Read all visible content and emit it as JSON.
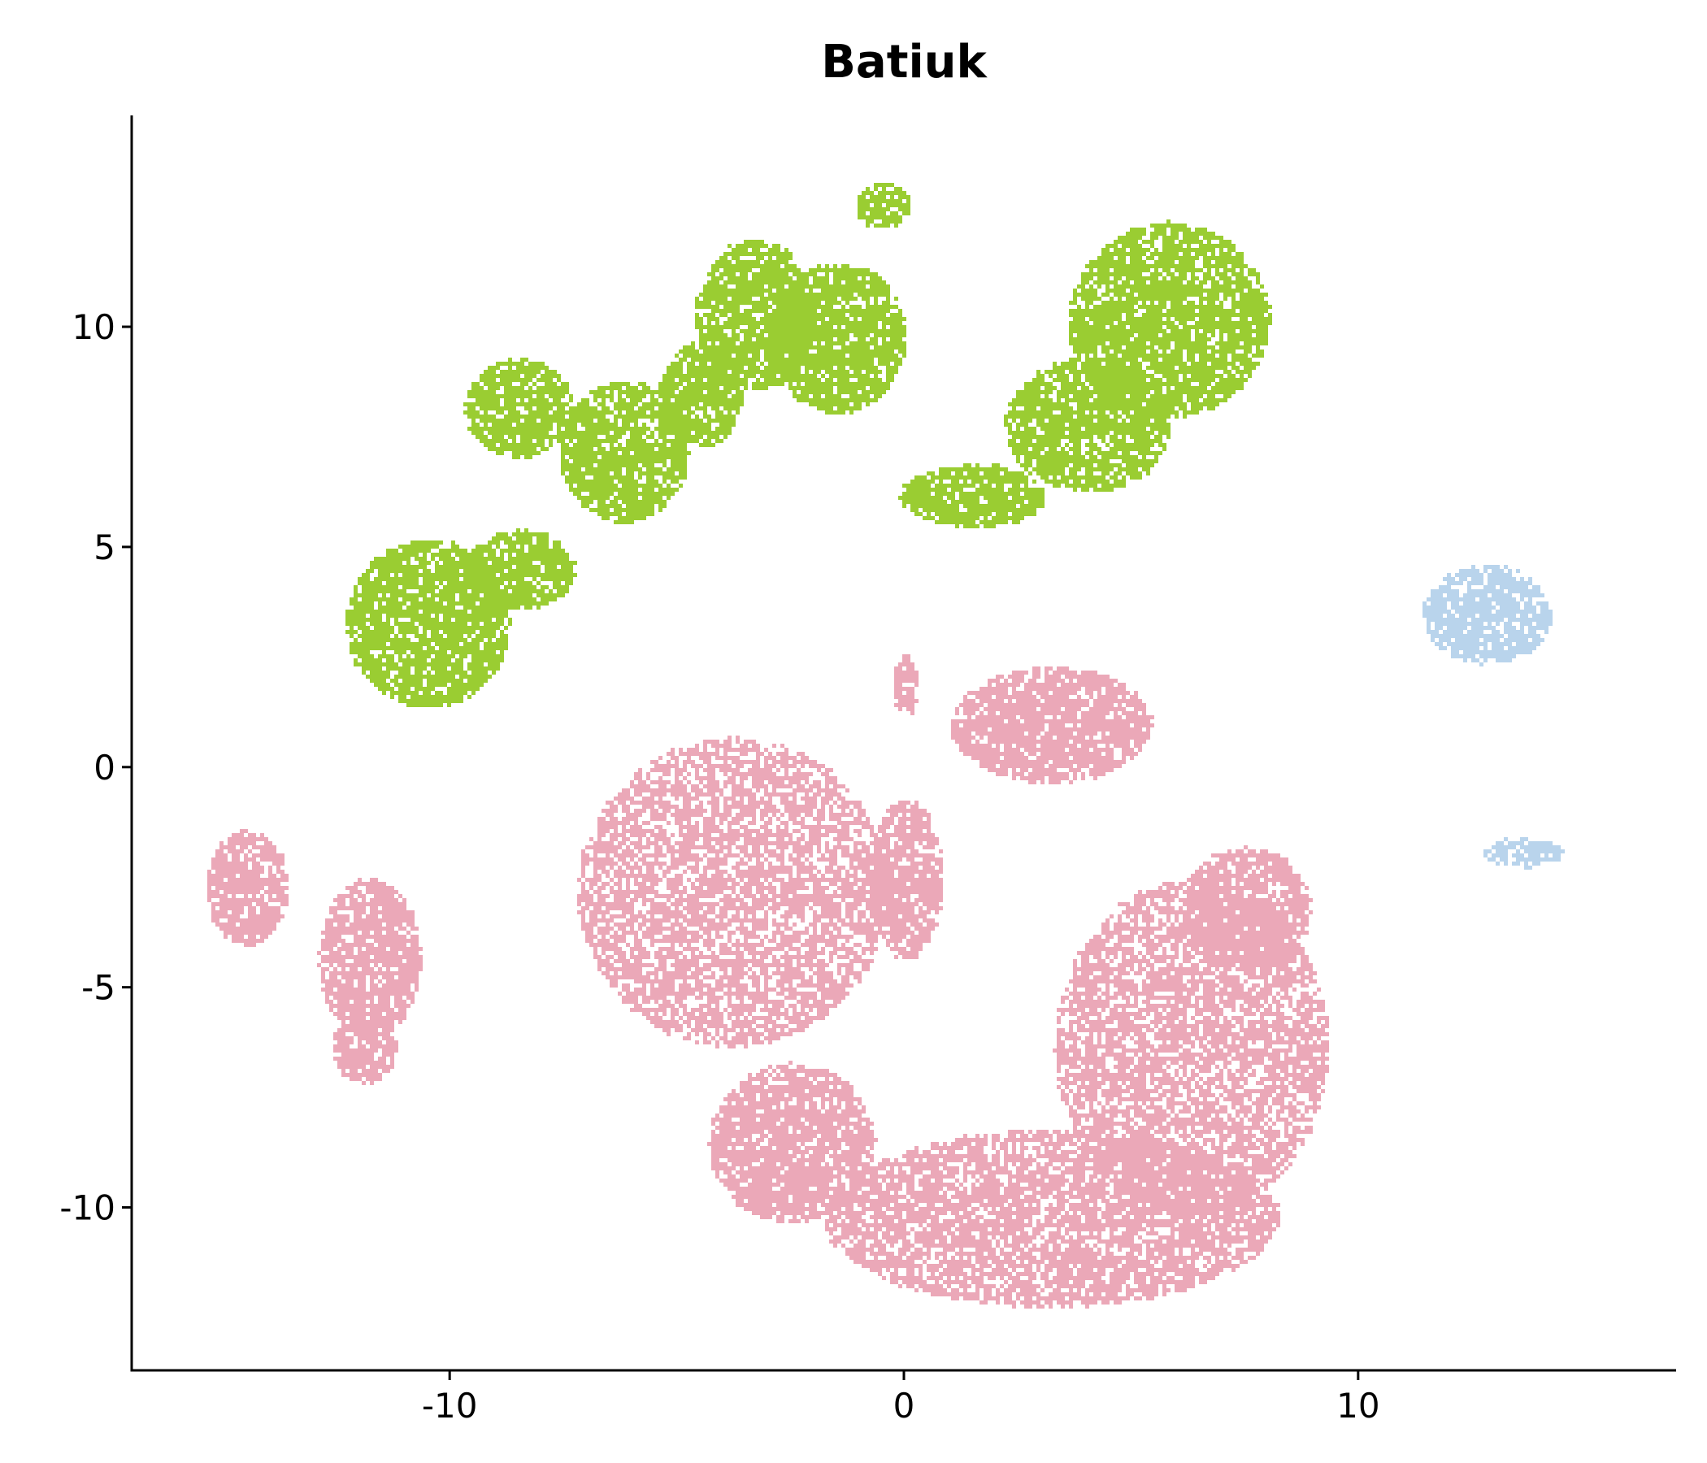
{
  "chart_data": {
    "type": "scatter",
    "title": "Batiuk",
    "xlabel": "",
    "ylabel": "",
    "xlim": [
      -17,
      17
    ],
    "ylim": [
      -13.7,
      14.8
    ],
    "x_ticks": [
      -10,
      0,
      10
    ],
    "x_tick_labels": [
      "-10",
      "0",
      "10"
    ],
    "y_ticks": [
      -10,
      -5,
      0,
      5,
      10
    ],
    "y_tick_labels": [
      "-10",
      "-5",
      "0",
      "5",
      "10"
    ],
    "grid": false,
    "legend": "none",
    "series": [
      {
        "color": "#9acd32",
        "clusters": [
          {
            "cx": -10.5,
            "cy": 3.3,
            "rx": 1.8,
            "ry": 1.9
          },
          {
            "cx": -8.5,
            "cy": 4.5,
            "rx": 1.2,
            "ry": 0.9
          },
          {
            "cx": -8.5,
            "cy": 8.2,
            "rx": 1.2,
            "ry": 1.1
          },
          {
            "cx": -6.2,
            "cy": 7.2,
            "rx": 1.4,
            "ry": 1.6
          },
          {
            "cx": -4.5,
            "cy": 8.5,
            "rx": 0.9,
            "ry": 1.2
          },
          {
            "cx": -3.3,
            "cy": 10.3,
            "rx": 1.3,
            "ry": 1.7
          },
          {
            "cx": -1.5,
            "cy": 9.8,
            "rx": 1.5,
            "ry": 1.7
          },
          {
            "cx": -0.5,
            "cy": 12.8,
            "rx": 0.6,
            "ry": 0.5
          },
          {
            "cx": 1.5,
            "cy": 6.2,
            "rx": 1.6,
            "ry": 0.7
          },
          {
            "cx": 4.0,
            "cy": 7.8,
            "rx": 1.8,
            "ry": 1.5
          },
          {
            "cx": 5.8,
            "cy": 10.2,
            "rx": 2.2,
            "ry": 2.2
          }
        ]
      },
      {
        "color": "#eba8b8",
        "clusters": [
          {
            "cx": -14.5,
            "cy": -2.7,
            "rx": 0.9,
            "ry": 1.3
          },
          {
            "cx": -11.8,
            "cy": -4.3,
            "rx": 1.1,
            "ry": 1.8
          },
          {
            "cx": -11.9,
            "cy": -6.3,
            "rx": 0.7,
            "ry": 0.8
          },
          {
            "cx": 0.0,
            "cy": 1.9,
            "rx": 0.25,
            "ry": 0.7
          },
          {
            "cx": 3.2,
            "cy": 1.0,
            "rx": 2.2,
            "ry": 1.3
          },
          {
            "cx": -3.8,
            "cy": -2.8,
            "rx": 3.4,
            "ry": 3.5
          },
          {
            "cx": -2.5,
            "cy": -8.5,
            "rx": 1.8,
            "ry": 1.8
          },
          {
            "cx": 0.0,
            "cy": -2.5,
            "rx": 0.8,
            "ry": 1.8
          },
          {
            "cx": 3.2,
            "cy": -10.2,
            "rx": 5.0,
            "ry": 2.0
          },
          {
            "cx": 6.3,
            "cy": -6.3,
            "rx": 3.0,
            "ry": 3.8
          },
          {
            "cx": 7.5,
            "cy": -3.2,
            "rx": 1.4,
            "ry": 1.4
          }
        ]
      },
      {
        "color": "#b9d4ec",
        "clusters": [
          {
            "cx": 12.8,
            "cy": 3.5,
            "rx": 1.4,
            "ry": 1.1
          },
          {
            "cx": 13.6,
            "cy": -1.9,
            "rx": 0.9,
            "ry": 0.3
          }
        ]
      }
    ]
  }
}
